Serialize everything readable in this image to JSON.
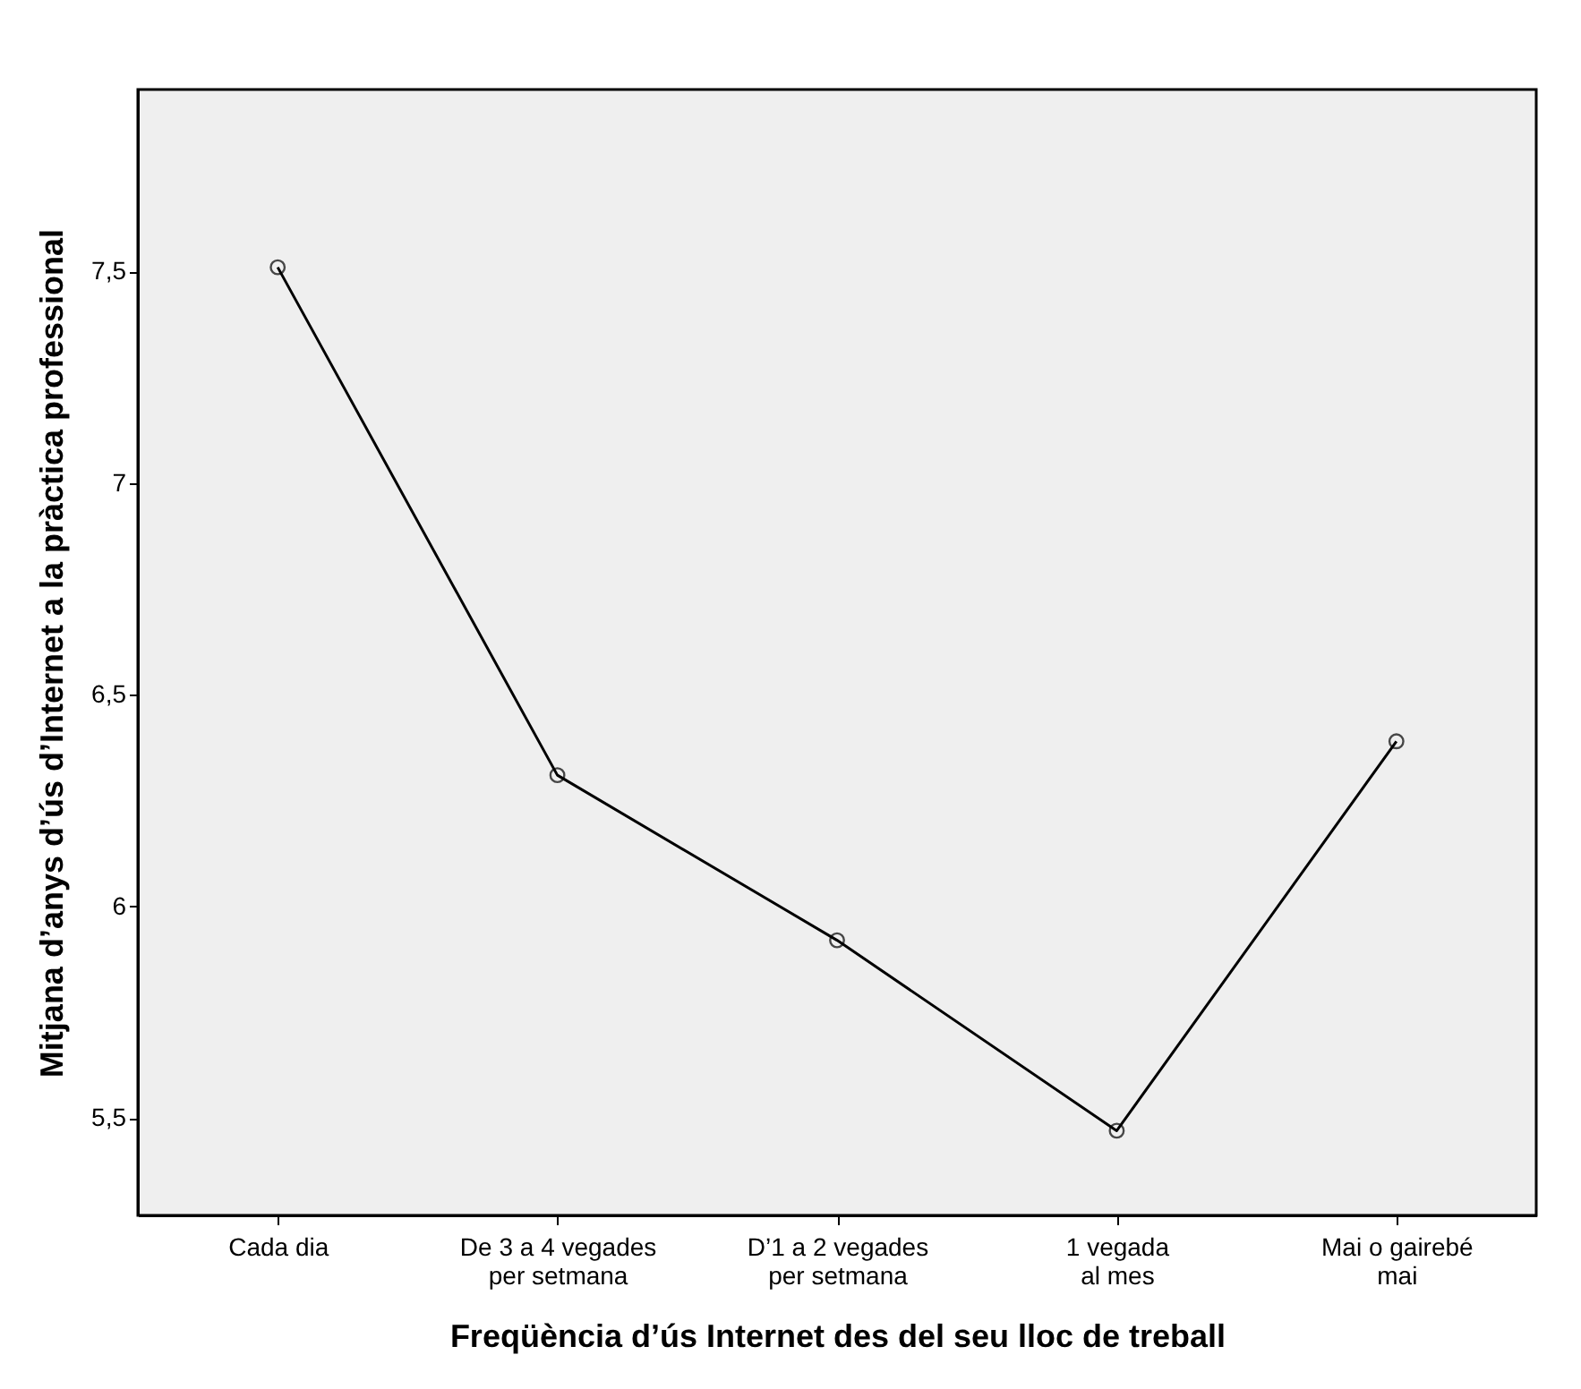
{
  "chart_data": {
    "type": "line",
    "xlabel": "Freqüència d’ús Internet des del seu lloc de treball",
    "ylabel": "Mitjana d’anys d’ús d’Internet a la pràctica professional",
    "categories": [
      "Cada dia",
      "De 3 a 4 vegades per setmana",
      "D’1 a 2 vegades per setmana",
      "1 vegada al mes",
      "Mai o gairebé mai"
    ],
    "series": [
      {
        "color": "#000000",
        "values": [
          7.51,
          6.31,
          5.92,
          5.47,
          6.39
        ]
      }
    ],
    "ylim": [
      5.27,
      7.93
    ],
    "yticks": [
      {
        "value": 5.5,
        "label": "5,5"
      },
      {
        "value": 6,
        "label": "6"
      },
      {
        "value": 6.5,
        "label": "6,5"
      },
      {
        "value": 7,
        "label": "7"
      },
      {
        "value": 7.5,
        "label": "7,5"
      }
    ],
    "marker": "circle",
    "line_style": "solid"
  }
}
